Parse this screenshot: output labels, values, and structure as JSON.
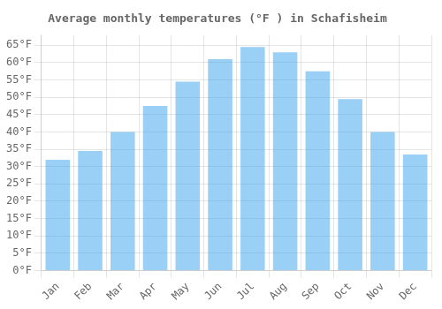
{
  "chart_data": {
    "type": "bar",
    "title": "Average monthly temperatures (°F ) in Schafisheim",
    "categories": [
      "Jan",
      "Feb",
      "Mar",
      "Apr",
      "May",
      "Jun",
      "Jul",
      "Aug",
      "Sep",
      "Oct",
      "Nov",
      "Dec"
    ],
    "values": [
      32,
      34.5,
      40,
      47.5,
      54.5,
      61,
      64.5,
      63,
      57.5,
      49.5,
      40,
      33.5
    ],
    "ylim": [
      0,
      68
    ],
    "yticks": [
      {
        "value": 0,
        "label": "0°F"
      },
      {
        "value": 5,
        "label": "5°F"
      },
      {
        "value": 10,
        "label": "10°F"
      },
      {
        "value": 15,
        "label": "15°F"
      },
      {
        "value": 20,
        "label": "20°F"
      },
      {
        "value": 25,
        "label": "25°F"
      },
      {
        "value": 30,
        "label": "30°F"
      },
      {
        "value": 35,
        "label": "35°F"
      },
      {
        "value": 40,
        "label": "40°F"
      },
      {
        "value": 45,
        "label": "45°F"
      },
      {
        "value": 50,
        "label": "50°F"
      },
      {
        "value": 55,
        "label": "55°F"
      },
      {
        "value": 60,
        "label": "60°F"
      },
      {
        "value": 65,
        "label": "65°F"
      }
    ],
    "grid": true
  }
}
